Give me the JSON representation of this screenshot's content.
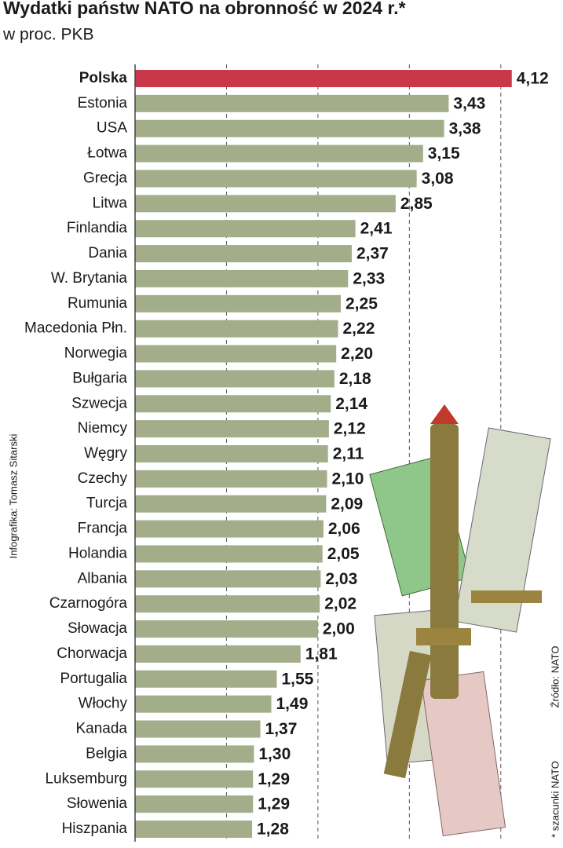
{
  "chart_data": {
    "type": "bar",
    "orientation": "horizontal",
    "title": "Wydatki państw NATO na obronność w 2024 r.*",
    "subtitle": "w proc. PKB",
    "credit": "Infografika: Tomasz Sitarski",
    "source": "Źródło: NATO",
    "footnote": "* szacunki NATO",
    "categories": [
      "Polska",
      "Estonia",
      "USA",
      "Łotwa",
      "Grecja",
      "Litwa",
      "Finlandia",
      "Dania",
      "W. Brytania",
      "Rumunia",
      "Macedonia Płn.",
      "Norwegia",
      "Bułgaria",
      "Szwecja",
      "Niemcy",
      "Węgry",
      "Czechy",
      "Turcja",
      "Francja",
      "Holandia",
      "Albania",
      "Czarnogóra",
      "Słowacja",
      "Chorwacja",
      "Portugalia",
      "Włochy",
      "Kanada",
      "Belgia",
      "Luksemburg",
      "Słowenia",
      "Hiszpania"
    ],
    "values": [
      4.12,
      3.43,
      3.38,
      3.15,
      3.08,
      2.85,
      2.41,
      2.37,
      2.33,
      2.25,
      2.22,
      2.2,
      2.18,
      2.14,
      2.12,
      2.11,
      2.1,
      2.09,
      2.06,
      2.05,
      2.03,
      2.02,
      2.0,
      1.81,
      1.55,
      1.49,
      1.37,
      1.3,
      1.29,
      1.29,
      1.28
    ],
    "value_labels": [
      "4,12",
      "3,43",
      "3,38",
      "3,15",
      "3,08",
      "2,85",
      "2,41",
      "2,37",
      "2,33",
      "2,25",
      "2,22",
      "2,20",
      "2,18",
      "2,14",
      "2,12",
      "2,11",
      "2,10",
      "2,09",
      "2,06",
      "2,05",
      "2,03",
      "2,02",
      "2,00",
      "1,81",
      "1,55",
      "1,49",
      "1,37",
      "1,30",
      "1,29",
      "1,29",
      "1,28"
    ],
    "colors": [
      "#c9374b",
      "#a3ad89",
      "#a3ad89",
      "#a3ad89",
      "#a3ad89",
      "#a3ad89",
      "#a3ad89",
      "#a3ad89",
      "#a3ad89",
      "#a3ad89",
      "#a3ad89",
      "#a3ad89",
      "#a3ad89",
      "#a3ad89",
      "#a3ad89",
      "#a3ad89",
      "#a3ad89",
      "#a3ad89",
      "#a3ad89",
      "#a3ad89",
      "#a3ad89",
      "#a3ad89",
      "#a3ad89",
      "#a3ad89",
      "#a3ad89",
      "#a3ad89",
      "#a3ad89",
      "#a3ad89",
      "#a3ad89",
      "#a3ad89",
      "#a3ad89"
    ],
    "xlim": [
      0,
      4.5
    ],
    "xticks": [
      1,
      2,
      3,
      4
    ],
    "grid": true
  }
}
